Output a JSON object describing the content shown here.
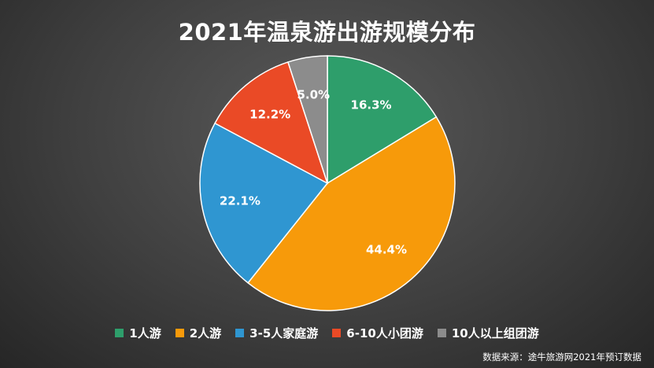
{
  "chart_data": {
    "type": "pie",
    "title": "2021年温泉游出游规模分布",
    "categories": [
      "1人游",
      "2人游",
      "3-5人家庭游",
      "6-10人小团游",
      "10人以上组团游"
    ],
    "values": [
      16.3,
      44.4,
      22.1,
      12.2,
      5.0
    ],
    "value_labels": [
      "16.3%",
      "44.4%",
      "22.1%",
      "12.2%",
      "5.0%"
    ],
    "colors": [
      "#2e9e6b",
      "#f79a0a",
      "#2f96d1",
      "#ea4a26",
      "#8c8c8c"
    ],
    "start_angle": "12 o'clock",
    "direction": "clockwise",
    "legend_position": "bottom"
  },
  "source": "数据来源：途牛旅游网2021年预订数据"
}
